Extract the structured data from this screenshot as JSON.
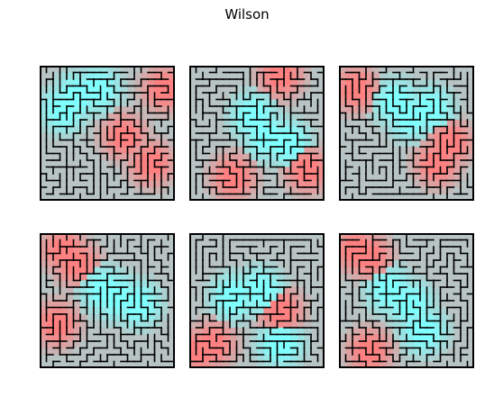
{
  "figure": {
    "title": "Wilson"
  },
  "panels_count": 6,
  "colors": {
    "wall": "#000000",
    "cold": "#b8c4c4",
    "cyan": "#80ffff",
    "red": "#ff8080",
    "background": "#ffffff"
  }
}
